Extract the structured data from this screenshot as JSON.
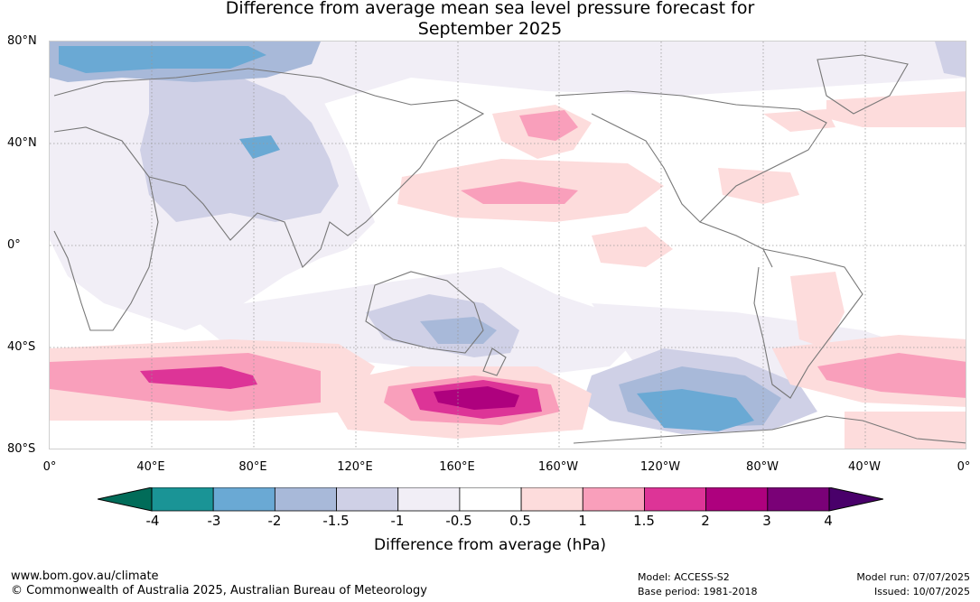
{
  "title_line1": "Difference from average mean sea level pressure forecast for",
  "title_line2": "September 2025",
  "lat_labels": [
    "80°N",
    "40°N",
    "0°",
    "40°S",
    "80°S"
  ],
  "lon_labels": [
    "0°",
    "40°E",
    "80°E",
    "120°E",
    "160°E",
    "160°W",
    "120°W",
    "80°W",
    "40°W",
    "0°"
  ],
  "colorbar": {
    "ticks": [
      "-4",
      "-3",
      "-2",
      "-1.5",
      "-1",
      "-0.5",
      "0.5",
      "1",
      "1.5",
      "2",
      "3",
      "4"
    ],
    "colors": [
      "#1a9496",
      "#6aa9d4",
      "#a8b9d9",
      "#cfd0e6",
      "#f1eef6",
      "#ffffff",
      "#fddcdc",
      "#f99fbb",
      "#dd3497",
      "#ae017e",
      "#7a0177"
    ],
    "low_extend_color": "#016c59",
    "high_extend_color": "#49006a",
    "title": "Difference from average (hPa)"
  },
  "footer": {
    "url": "www.bom.gov.au/climate",
    "copyright": "© Commonwealth of Australia 2025, Australian Bureau of Meteorology",
    "model": "Model: ACCESS-S2",
    "base_period": "Base period: 1981-2018",
    "model_run": "Model run: 07/07/2025",
    "issued": "Issued: 10/07/2025"
  }
}
